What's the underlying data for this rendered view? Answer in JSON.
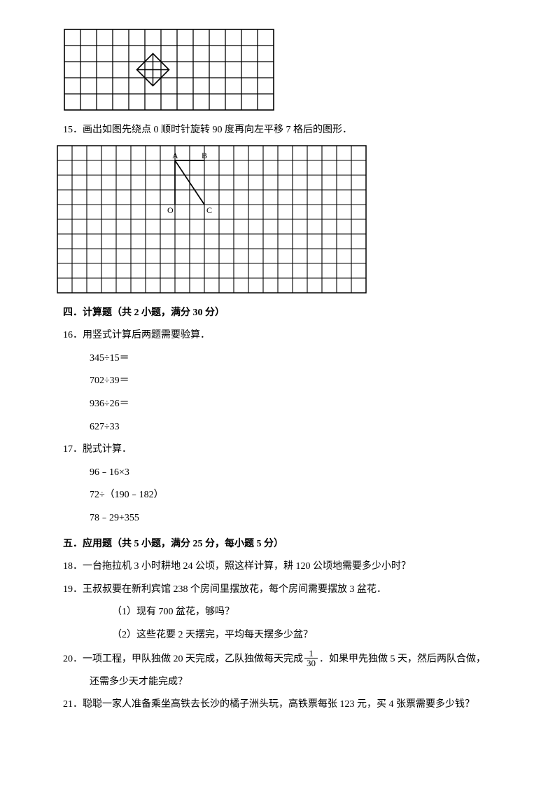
{
  "figure1": {
    "cols": 13,
    "rows": 5,
    "cell": 23,
    "stroke": "#000000",
    "stroke_width": 1.3,
    "border_width": 1.6,
    "diamond": {
      "cx_cell": 5.5,
      "cy_cell": 2.5,
      "half_cells": 1.0
    },
    "cross_point": {
      "cx_cell": 5.5,
      "cy_cell": 2.5
    }
  },
  "q15": {
    "number": "15．",
    "text": "画出如图先绕点 0 顺时针旋转 90 度再向左平移 7 格后的图形．"
  },
  "figure2": {
    "cols": 21,
    "rows": 10,
    "cell": 21,
    "stroke": "#000000",
    "stroke_width": 1.1,
    "border_width": 1.5,
    "labels": {
      "A": "A",
      "B": "B",
      "O": "O",
      "C": "C"
    },
    "label_fontsize": 12,
    "O": {
      "col": 8,
      "row": 4
    },
    "A": {
      "col": 8,
      "row": 1
    },
    "B": {
      "col": 10,
      "row": 1
    },
    "C": {
      "col": 10,
      "row": 4
    }
  },
  "section4": {
    "heading": "四．计算题（共 2 小题，满分 30 分）"
  },
  "q16": {
    "number": "16．",
    "text": "用竖式计算后两题需要验算．",
    "items": [
      "345÷15＝",
      "702÷39＝",
      "936÷26＝",
      "627÷33"
    ]
  },
  "q17": {
    "number": "17．",
    "text": "脱式计算．",
    "items": [
      "96﹣16×3",
      "72÷（190﹣182）",
      "78﹣29+355"
    ]
  },
  "section5": {
    "heading": "五．应用题（共 5 小题，满分 25 分，每小题 5 分）"
  },
  "q18": {
    "number": "18．",
    "text": "一台拖拉机 3 小时耕地 24 公顷，照这样计算，耕 120 公顷地需要多少小时？"
  },
  "q19": {
    "number": "19．",
    "text": "王叔叔要在新利宾馆 238 个房间里摆放花，每个房间需要摆放 3 盆花．",
    "sub1": "（1）现有 700 盆花，够吗？",
    "sub2": "（2）这些花要 2 天摆完，平均每天摆多少盆？"
  },
  "q20": {
    "number": "20．",
    "pre": "一项工程，甲队独做 20 天完成，乙队独做每天完成",
    "frac_num": "1",
    "frac_den": "30",
    "post": "．如果甲先独做 5 天，然后两队合做，",
    "line2": "还需多少天才能完成？"
  },
  "q21": {
    "number": "21．",
    "text": "聪聪一家人准备乘坐高铁去长沙的橘子洲头玩，高铁票每张 123 元，买 4 张票需要多少钱？"
  }
}
